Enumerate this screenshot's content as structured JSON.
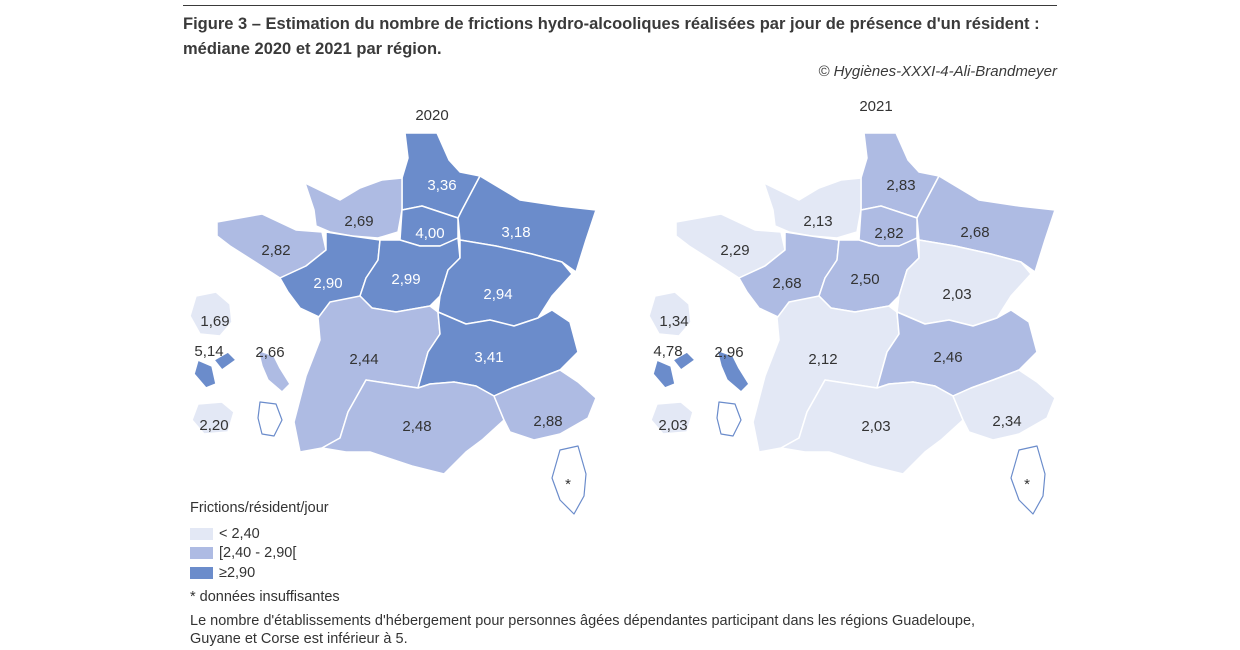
{
  "title": "Figure 3 – Estimation du nombre de frictions hydro-alcooliques réalisées par jour de présence d'un résident : médiane 2020 et 2021 par région.",
  "credit": "© Hygiènes-XXXI-4-Ali-Brandmeyer",
  "colors": {
    "low": "#e3e8f5",
    "mid": "#aebbe3",
    "high": "#6b8ccb",
    "stroke": "#ffffff",
    "outline": "#6b8ccb"
  },
  "maps": [
    {
      "year": "2020",
      "regions": [
        {
          "key": "hdf",
          "value": "3,36",
          "cls": "high"
        },
        {
          "key": "normandie",
          "value": "2,69",
          "cls": "mid"
        },
        {
          "key": "idf",
          "value": "4,00",
          "cls": "high"
        },
        {
          "key": "grand_est",
          "value": "3,18",
          "cls": "high"
        },
        {
          "key": "bretagne",
          "value": "2,82",
          "cls": "mid"
        },
        {
          "key": "pdl",
          "value": "2,90",
          "cls": "high"
        },
        {
          "key": "cvl",
          "value": "2,99",
          "cls": "high"
        },
        {
          "key": "bfc",
          "value": "2,94",
          "cls": "high"
        },
        {
          "key": "na",
          "value": "2,44",
          "cls": "mid"
        },
        {
          "key": "ara",
          "value": "3,41",
          "cls": "high"
        },
        {
          "key": "occitanie",
          "value": "2,48",
          "cls": "mid"
        },
        {
          "key": "paca",
          "value": "2,88",
          "cls": "mid"
        },
        {
          "key": "corse",
          "value": "*",
          "cls": "none"
        },
        {
          "key": "reunion",
          "value": "1,69",
          "cls": "low"
        },
        {
          "key": "guadeloupe",
          "value": "5,14",
          "cls": "high"
        },
        {
          "key": "martinique",
          "value": "2,66",
          "cls": "mid"
        },
        {
          "key": "mayotte",
          "value": "2,20",
          "cls": "low"
        },
        {
          "key": "guyane",
          "value": "",
          "cls": "none"
        }
      ]
    },
    {
      "year": "2021",
      "regions": [
        {
          "key": "hdf",
          "value": "2,83",
          "cls": "mid"
        },
        {
          "key": "normandie",
          "value": "2,13",
          "cls": "low"
        },
        {
          "key": "idf",
          "value": "2,82",
          "cls": "mid"
        },
        {
          "key": "grand_est",
          "value": "2,68",
          "cls": "mid"
        },
        {
          "key": "bretagne",
          "value": "2,29",
          "cls": "low"
        },
        {
          "key": "pdl",
          "value": "2,68",
          "cls": "mid"
        },
        {
          "key": "cvl",
          "value": "2,50",
          "cls": "mid"
        },
        {
          "key": "bfc",
          "value": "2,03",
          "cls": "low"
        },
        {
          "key": "na",
          "value": "2,12",
          "cls": "low"
        },
        {
          "key": "ara",
          "value": "2,46",
          "cls": "mid"
        },
        {
          "key": "occitanie",
          "value": "2,03",
          "cls": "low"
        },
        {
          "key": "paca",
          "value": "2,34",
          "cls": "low"
        },
        {
          "key": "corse",
          "value": "*",
          "cls": "none"
        },
        {
          "key": "reunion",
          "value": "1,34",
          "cls": "low"
        },
        {
          "key": "guadeloupe",
          "value": "4,78",
          "cls": "high"
        },
        {
          "key": "martinique",
          "value": "2,96",
          "cls": "high"
        },
        {
          "key": "mayotte",
          "value": "2,03",
          "cls": "low"
        },
        {
          "key": "guyane",
          "value": "",
          "cls": "none"
        }
      ]
    }
  ],
  "legend": {
    "title": "Frictions/résident/jour",
    "items": [
      {
        "label": "< 2,40",
        "cls": "low"
      },
      {
        "label": "[2,40 - 2,90[",
        "cls": "mid"
      },
      {
        "label": "≥2,90",
        "cls": "high"
      }
    ]
  },
  "footnote": "* données insuffisantes",
  "note": "Le nombre d'établissements d'hébergement pour personnes âgées dépendantes participant dans les régions Guadeloupe, Guyane et Corse est inférieur à 5."
}
